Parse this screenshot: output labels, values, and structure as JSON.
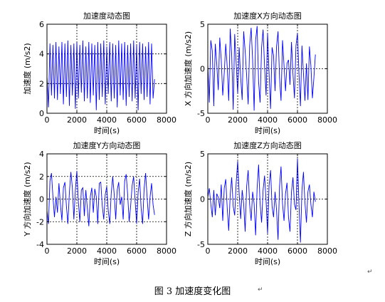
{
  "caption": "图 3  加速度变化图",
  "paragraph_mark": "↵",
  "chart_data": [
    {
      "type": "line",
      "title": "加速度动态图",
      "xlabel": "时间(s)",
      "ylabel": "加速度 (m/s2)",
      "xlim": [
        0,
        8000
      ],
      "ylim": [
        0,
        6
      ],
      "xticks": [
        0,
        2000,
        4000,
        6000,
        8000
      ],
      "yticks": [
        0,
        2,
        4,
        6
      ],
      "grid": true,
      "line_color": "#0000ff",
      "series": [
        {
          "x": [
            0,
            100,
            200,
            300,
            400,
            500,
            600,
            700,
            800,
            900,
            1000,
            1100,
            1200,
            1300,
            1400,
            1500,
            1600,
            1700,
            1800,
            1900,
            2000,
            2100,
            2200,
            2300,
            2400,
            2500,
            2600,
            2700,
            2800,
            2900,
            3000,
            3100,
            3200,
            3300,
            3400,
            3500,
            3600,
            3700,
            3800,
            3900,
            4000,
            4100,
            4200,
            4300,
            4400,
            4500,
            4600,
            4700,
            4800,
            4900,
            5000,
            5100,
            5200,
            5300,
            5400,
            5500,
            5600,
            5700,
            5800,
            5900,
            6000,
            6100,
            6200,
            6300,
            6400,
            6500,
            6600,
            6700,
            6800,
            6900,
            7000,
            7100,
            7200
          ],
          "y": [
            2.5,
            0.4,
            4.7,
            1.2,
            4.6,
            1.0,
            4.8,
            0.9,
            4.5,
            1.3,
            4.8,
            0.6,
            4.7,
            1.1,
            4.9,
            0.5,
            4.6,
            1.2,
            4.7,
            0.3,
            4.8,
            1.0,
            4.6,
            1.4,
            4.9,
            0.8,
            4.5,
            1.0,
            4.8,
            0.7,
            4.7,
            1.2,
            4.6,
            0.2,
            4.8,
            0.9,
            4.7,
            1.1,
            4.9,
            0.6,
            4.5,
            1.3,
            4.8,
            0.8,
            4.7,
            1.0,
            4.6,
            0.4,
            4.9,
            1.2,
            4.7,
            0.9,
            4.8,
            0.5,
            4.6,
            1.1,
            4.7,
            0.8,
            4.9,
            1.0,
            4.6,
            0.2,
            4.8,
            1.3,
            4.7,
            0.9,
            4.5,
            1.1,
            4.8,
            0.6,
            4.7,
            1.0,
            2.3
          ]
        }
      ]
    },
    {
      "type": "line",
      "title": "加速度X方向动态图",
      "xlabel": "时间(s)",
      "ylabel": "X 方向加速度 (m/s2)",
      "xlim": [
        0,
        8000
      ],
      "ylim": [
        -5,
        5
      ],
      "xticks": [
        0,
        2000,
        4000,
        6000,
        8000
      ],
      "yticks": [
        -5,
        0,
        5
      ],
      "grid": true,
      "line_color": "#0000ff",
      "series": [
        {
          "x": [
            0,
            100,
            200,
            300,
            400,
            500,
            600,
            700,
            800,
            900,
            1000,
            1100,
            1200,
            1300,
            1400,
            1500,
            1600,
            1700,
            1800,
            1900,
            2000,
            2100,
            2200,
            2300,
            2400,
            2500,
            2600,
            2700,
            2800,
            2900,
            3000,
            3100,
            3200,
            3300,
            3400,
            3500,
            3600,
            3700,
            3800,
            3900,
            4000,
            4100,
            4200,
            4300,
            4400,
            4500,
            4600,
            4700,
            4800,
            4900,
            5000,
            5100,
            5200,
            5300,
            5400,
            5500,
            5600,
            5700,
            5800,
            5900,
            6000,
            6100,
            6200,
            6300,
            6400,
            6500,
            6600,
            6700,
            6800,
            6900,
            7000,
            7100,
            7200
          ],
          "y": [
            0.5,
            -3.8,
            3.2,
            2.0,
            -4.2,
            2.8,
            0.5,
            -2.4,
            3.5,
            1.0,
            -3.0,
            -0.5,
            2.8,
            0.2,
            -3.6,
            4.5,
            1.5,
            -4.6,
            3.9,
            0.6,
            -2.8,
            2.4,
            -1.0,
            -3.5,
            4.2,
            2.0,
            -0.8,
            -4.0,
            2.6,
            4.6,
            1.0,
            -4.7,
            3.2,
            4.8,
            -1.5,
            -3.8,
            2.4,
            4.4,
            0.2,
            -3.0,
            4.0,
            -0.5,
            -4.5,
            2.4,
            1.5,
            -2.5,
            2.5,
            4.2,
            -1.0,
            -3.6,
            3.2,
            0.4,
            -2.5,
            0.6,
            1.0,
            -1.8,
            3.0,
            -0.6,
            -3.3,
            2.6,
            4.0,
            -0.5,
            -4.2,
            2.6,
            -0.5,
            -3.6,
            0.6,
            -3.5,
            2.5,
            0.3,
            -3.3,
            -1.0,
            1.6
          ]
        }
      ]
    },
    {
      "type": "line",
      "title": "加速度Y方向动态图",
      "xlabel": "时间(s)",
      "ylabel": "Y 方向加速度 (m/s2)",
      "xlim": [
        0,
        8000
      ],
      "ylim": [
        -4,
        4
      ],
      "xticks": [
        0,
        2000,
        4000,
        6000,
        8000
      ],
      "yticks": [
        -4,
        -2,
        0,
        2,
        4
      ],
      "grid": true,
      "line_color": "#0000ff",
      "series": [
        {
          "x": [
            0,
            100,
            200,
            300,
            400,
            500,
            600,
            700,
            800,
            900,
            1000,
            1100,
            1200,
            1300,
            1400,
            1500,
            1600,
            1700,
            1800,
            1900,
            2000,
            2100,
            2200,
            2300,
            2400,
            2500,
            2600,
            2700,
            2800,
            2900,
            3000,
            3100,
            3200,
            3300,
            3400,
            3500,
            3600,
            3700,
            3800,
            3900,
            4000,
            4100,
            4200,
            4300,
            4400,
            4500,
            4600,
            4700,
            4800,
            4900,
            5000,
            5100,
            5200,
            5300,
            5400,
            5500,
            5600,
            5700,
            5800,
            5900,
            6000,
            6100,
            6200,
            6300,
            6400,
            6500,
            6600,
            6700,
            6800,
            6900,
            7000,
            7100,
            7200
          ],
          "y": [
            -1.0,
            -2.2,
            1.6,
            2.3,
            0.2,
            -1.6,
            0.2,
            -1.2,
            1.4,
            -0.5,
            -1.9,
            1.0,
            1.5,
            -0.6,
            -2.2,
            0.6,
            2.4,
            1.0,
            -1.8,
            0.8,
            2.5,
            -0.2,
            -2.0,
            0.8,
            1.0,
            -1.5,
            0.8,
            -0.8,
            -2.4,
            0.2,
            1.0,
            -1.2,
            0.9,
            0.2,
            -2.2,
            1.4,
            1.5,
            -0.6,
            -1.8,
            0.4,
            1.1,
            -1.0,
            -2.2,
            0.5,
            2.0,
            0.4,
            -1.8,
            0.8,
            1.5,
            -0.5,
            0.2,
            -1.8,
            1.6,
            2.2,
            0.4,
            -2.0,
            -0.6,
            1.2,
            2.0,
            -0.2,
            -2.2,
            0.6,
            1.8,
            -0.8,
            -2.2,
            0.9,
            2.3,
            0.2,
            -1.8,
            0.2,
            1.4,
            -0.5,
            -1.4
          ]
        }
      ]
    },
    {
      "type": "line",
      "title": "加速度Z方向动态图",
      "xlabel": "时间(s)",
      "ylabel": "Z 方向加速度 (m/s2)",
      "xlim": [
        0,
        8000
      ],
      "ylim": [
        -5,
        5
      ],
      "xticks": [
        0,
        2000,
        4000,
        6000,
        8000
      ],
      "yticks": [
        -5,
        0,
        5
      ],
      "grid": true,
      "line_color": "#0000ff",
      "series": [
        {
          "x": [
            0,
            100,
            200,
            300,
            400,
            500,
            600,
            700,
            800,
            900,
            1000,
            1100,
            1200,
            1300,
            1400,
            1500,
            1600,
            1700,
            1800,
            1900,
            2000,
            2100,
            2200,
            2300,
            2400,
            2500,
            2600,
            2700,
            2800,
            2900,
            3000,
            3100,
            3200,
            3300,
            3400,
            3500,
            3600,
            3700,
            3800,
            3900,
            4000,
            4100,
            4200,
            4300,
            4400,
            4500,
            4600,
            4700,
            4800,
            4900,
            5000,
            5100,
            5200,
            5300,
            5400,
            5500,
            5600,
            5700,
            5800,
            5900,
            6000,
            6100,
            6200,
            6300,
            6400,
            6500,
            6600,
            6700,
            6800,
            6900,
            7000,
            7100,
            7200
          ],
          "y": [
            0.2,
            1.2,
            -0.5,
            -2.0,
            1.0,
            -1.8,
            0.6,
            0.2,
            -1.0,
            1.6,
            -2.4,
            1.2,
            2.2,
            -1.0,
            -3.5,
            0.5,
            2.4,
            -0.8,
            -1.8,
            1.8,
            4.2,
            0.6,
            -2.2,
            1.0,
            -0.5,
            -3.6,
            1.4,
            3.2,
            -0.6,
            -2.4,
            0.8,
            -0.5,
            -4.0,
            1.2,
            3.8,
            -0.5,
            -2.6,
            1.0,
            2.6,
            -0.2,
            -3.8,
            1.5,
            3.2,
            -0.8,
            -2.0,
            0.8,
            -1.2,
            -4.5,
            1.4,
            3.6,
            -0.5,
            -2.4,
            0.6,
            1.8,
            -2.0,
            -3.6,
            0.8,
            2.4,
            -0.6,
            -1.2,
            4.5,
            -0.5,
            -4.8,
            1.0,
            3.0,
            -0.4,
            -2.6,
            0.8,
            1.6,
            -0.6,
            -2.0,
            0.8,
            -0.3
          ]
        }
      ]
    }
  ]
}
